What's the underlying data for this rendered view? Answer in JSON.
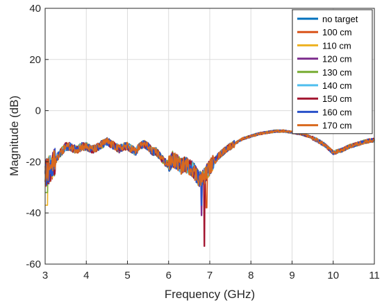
{
  "chart_data": {
    "type": "line",
    "xlabel": "Frequency (GHz)",
    "ylabel": "Magnitude (dB)",
    "xlim": [
      3,
      11
    ],
    "ylim": [
      -60,
      40
    ],
    "xticks": [
      3,
      4,
      5,
      6,
      7,
      8,
      9,
      10,
      11
    ],
    "yticks": [
      -60,
      -40,
      -20,
      0,
      20,
      40
    ],
    "grid": true,
    "legend_placement": "top-right",
    "base_curve": {
      "x": [
        3.0,
        3.1,
        3.2,
        3.3,
        3.4,
        3.5,
        3.6,
        3.7,
        3.8,
        3.9,
        4.0,
        4.1,
        4.2,
        4.3,
        4.4,
        4.5,
        4.6,
        4.7,
        4.8,
        4.9,
        5.0,
        5.1,
        5.2,
        5.3,
        5.4,
        5.5,
        5.6,
        5.7,
        5.8,
        5.9,
        6.0,
        6.1,
        6.2,
        6.3,
        6.4,
        6.5,
        6.6,
        6.7,
        6.8,
        6.9,
        7.0,
        7.1,
        7.2,
        7.4,
        7.6,
        7.8,
        8.0,
        8.2,
        8.4,
        8.6,
        8.8,
        9.0,
        9.2,
        9.4,
        9.6,
        9.8,
        10.0,
        10.2,
        10.4,
        10.6,
        10.8,
        11.0
      ],
      "y": [
        -25,
        -23,
        -21,
        -18,
        -16,
        -14,
        -14,
        -15,
        -15,
        -14,
        -14,
        -15,
        -15,
        -14,
        -13,
        -12,
        -13,
        -14,
        -15,
        -14,
        -14,
        -15,
        -16,
        -14,
        -13,
        -14,
        -16,
        -16,
        -18,
        -20,
        -21,
        -19,
        -20,
        -22,
        -21,
        -22,
        -23,
        -26,
        -27,
        -25,
        -22,
        -20,
        -18,
        -15,
        -13,
        -11,
        -10,
        -9,
        -8.5,
        -8,
        -8,
        -8.5,
        -9,
        -10,
        -11.5,
        -13.5,
        -16.5,
        -15.5,
        -14,
        -13,
        -12,
        -11.5
      ]
    },
    "series": [
      {
        "name": "no target",
        "color": "#0072BD"
      },
      {
        "name": "100 cm",
        "color": "#D95319"
      },
      {
        "name": "110 cm",
        "color": "#EDB120"
      },
      {
        "name": "120 cm",
        "color": "#7E2F8E"
      },
      {
        "name": "130 cm",
        "color": "#77AC30"
      },
      {
        "name": "140 cm",
        "color": "#4DBEEE"
      },
      {
        "name": "150 cm",
        "color": "#A2142F"
      },
      {
        "name": "160 cm",
        "color": "#2951C9"
      },
      {
        "name": "170 cm",
        "color": "#D9691E"
      }
    ]
  }
}
